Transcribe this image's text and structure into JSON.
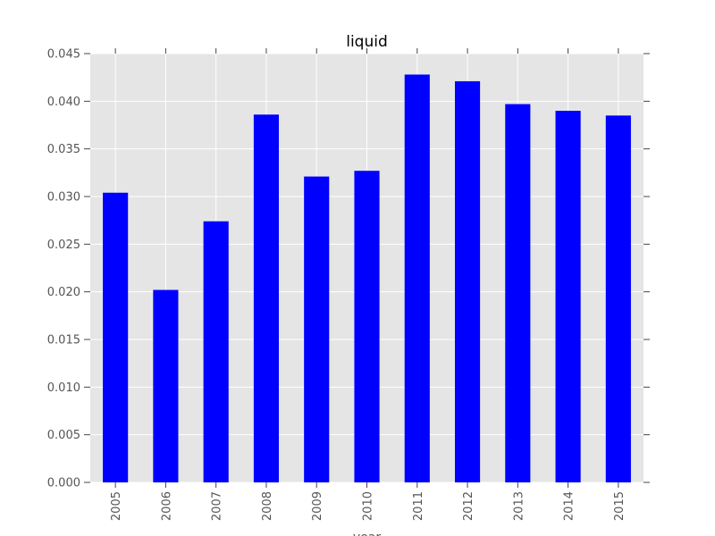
{
  "chart_data": {
    "type": "bar",
    "title": "liquid",
    "xlabel": "year",
    "ylabel": "",
    "categories": [
      "2005",
      "2006",
      "2007",
      "2008",
      "2009",
      "2010",
      "2011",
      "2012",
      "2013",
      "2014",
      "2015"
    ],
    "values": [
      0.0304,
      0.0202,
      0.0274,
      0.0386,
      0.0321,
      0.0327,
      0.0428,
      0.0421,
      0.0397,
      0.039,
      0.0385
    ],
    "ylim": [
      0,
      0.045
    ],
    "yticks": [
      "0.000",
      "0.005",
      "0.010",
      "0.015",
      "0.020",
      "0.025",
      "0.030",
      "0.035",
      "0.040",
      "0.045"
    ],
    "grid": true,
    "legend": "none",
    "colors": {
      "bar": "#0000ff",
      "plot_background": "#e5e5e5",
      "grid": "#ffffff",
      "tick_text": "#555555",
      "title_text": "#000000"
    }
  }
}
